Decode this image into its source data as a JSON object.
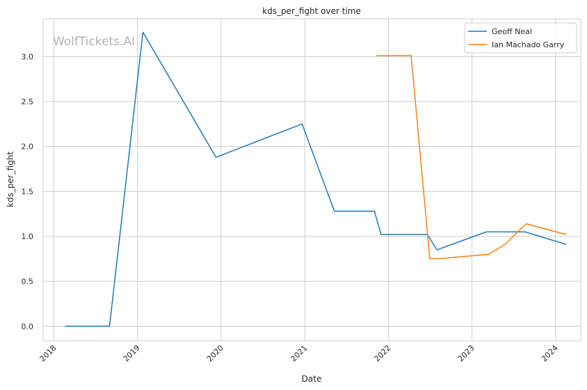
{
  "chart_data": {
    "type": "line",
    "title": "kds_per_fight over time",
    "xlabel": "Date",
    "ylabel": "kds_per_fight",
    "watermark": "WolfTickets.AI",
    "xlim": [
      "2017-11-15",
      "2024-04-20"
    ],
    "ylim": [
      -0.16,
      3.42
    ],
    "x_ticks": [
      "2018-01-01",
      "2019-01-01",
      "2020-01-01",
      "2021-01-01",
      "2022-01-01",
      "2023-01-01",
      "2024-01-01"
    ],
    "x_tick_labels": [
      "2018",
      "2019",
      "2020",
      "2021",
      "2022",
      "2023",
      "2024"
    ],
    "y_ticks": [
      0.0,
      0.5,
      1.0,
      1.5,
      2.0,
      2.5,
      3.0
    ],
    "y_tick_labels": [
      "0.0",
      "0.5",
      "1.0",
      "1.5",
      "2.0",
      "2.5",
      "3.0"
    ],
    "grid": true,
    "legend_position": "top-right",
    "series": [
      {
        "name": "Geoff Neal",
        "color": "#1f77b4",
        "points": [
          [
            "2018-02-20",
            0.0
          ],
          [
            "2018-09-01",
            0.0
          ],
          [
            "2019-01-25",
            3.27
          ],
          [
            "2019-12-10",
            1.88
          ],
          [
            "2020-12-20",
            2.25
          ],
          [
            "2021-05-10",
            1.28
          ],
          [
            "2021-11-01",
            1.28
          ],
          [
            "2021-11-30",
            1.02
          ],
          [
            "2022-06-20",
            1.02
          ],
          [
            "2022-08-01",
            0.85
          ],
          [
            "2023-03-05",
            1.05
          ],
          [
            "2023-08-20",
            1.05
          ],
          [
            "2024-02-17",
            0.91
          ]
        ]
      },
      {
        "name": "Ian Machado Garry",
        "color": "#ff7f0e",
        "points": [
          [
            "2021-11-10",
            3.01
          ],
          [
            "2022-04-10",
            3.01
          ],
          [
            "2022-07-01",
            0.75
          ],
          [
            "2022-08-01",
            0.75
          ],
          [
            "2023-03-15",
            0.8
          ],
          [
            "2023-05-25",
            0.91
          ],
          [
            "2023-08-25",
            1.14
          ],
          [
            "2024-02-17",
            1.02
          ]
        ]
      }
    ]
  }
}
